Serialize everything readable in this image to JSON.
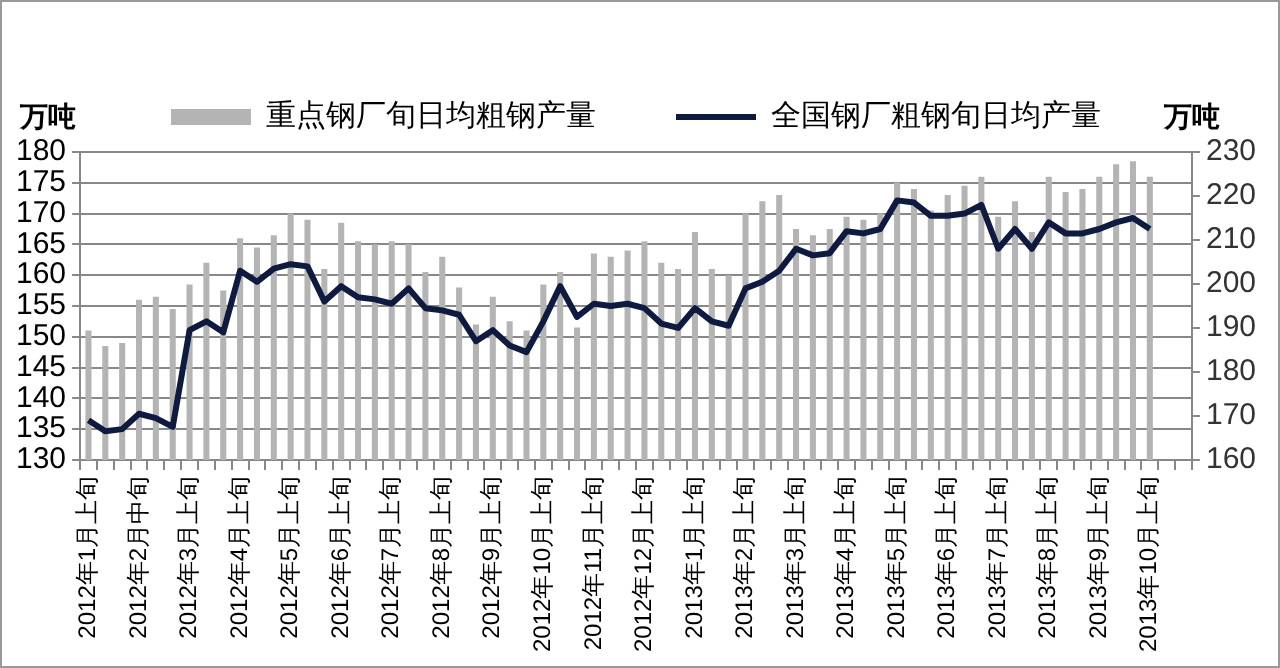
{
  "chart_data": {
    "type": "bar",
    "ylabel": "万吨",
    "y2label": "万吨",
    "categories": [
      "2012年1月上旬",
      null,
      null,
      "2012年2月中旬",
      null,
      null,
      "2012年3月上旬",
      null,
      null,
      "2012年4月上旬",
      null,
      null,
      "2012年5月上旬",
      null,
      null,
      "2012年6月上旬",
      null,
      null,
      "2012年7月上旬",
      null,
      null,
      "2012年8月上旬",
      null,
      null,
      "2012年9月上旬",
      null,
      null,
      "2012年10月上旬",
      null,
      null,
      "2012年11月上旬",
      null,
      null,
      "2012年12月上旬",
      null,
      null,
      "2013年1月上旬",
      null,
      null,
      "2013年2月上旬",
      null,
      null,
      "2013年3月上旬",
      null,
      null,
      "2013年4月上旬",
      null,
      null,
      "2013年5月上旬",
      null,
      null,
      "2013年6月上旬",
      null,
      null,
      "2013年7月上旬",
      null,
      null,
      "2013年8月上旬",
      null,
      null,
      "2013年9月上旬",
      null,
      null,
      "2013年10月上旬",
      null,
      null
    ],
    "series": [
      {
        "name": "重点钢厂旬日均粗钢产量",
        "color": "#b4b4b4",
        "values": [
          151,
          148.5,
          149,
          156,
          156.5,
          154.5,
          158.5,
          162,
          157.5,
          166,
          164.5,
          166.5,
          170,
          169,
          161,
          168.5,
          165.5,
          165,
          165.5,
          165,
          160.5,
          163,
          158,
          152,
          156.5,
          152.5,
          151,
          158.5,
          160.5,
          151.5,
          163.5,
          163,
          164,
          165.5,
          162,
          161,
          167,
          161,
          160,
          170,
          172,
          173,
          167.5,
          166.5,
          167.5,
          169.5,
          169,
          170,
          175,
          174,
          170.5,
          173,
          174.5,
          176,
          169.5,
          172,
          167,
          176,
          173.5,
          174,
          176,
          178,
          178.5,
          176,
          null,
          null
        ]
      },
      {
        "name": "全国钢厂粗钢旬日均产量",
        "type": "line",
        "axis": "y2",
        "color": "#0e1a40",
        "values": [
          169,
          166.5,
          167,
          170.5,
          169.5,
          167.5,
          189.5,
          191.5,
          189,
          203,
          200.5,
          203.5,
          204.5,
          204,
          196,
          199.5,
          197,
          196.5,
          195.5,
          199,
          194.5,
          194,
          193,
          187,
          189.5,
          186,
          184.5,
          191.5,
          199.5,
          192.5,
          195.5,
          195,
          195.5,
          194.5,
          191,
          190,
          194.5,
          191.5,
          190.5,
          199,
          200.5,
          203,
          208,
          206.5,
          207,
          212,
          211.5,
          212.5,
          219,
          218.5,
          215.5,
          215.5,
          216,
          218,
          208,
          212.5,
          208,
          214,
          211.5,
          211.5,
          212.5,
          214,
          215,
          212.5,
          null,
          null
        ]
      }
    ],
    "ylim": [
      130,
      180
    ],
    "yticks": [
      130,
      135,
      140,
      145,
      150,
      155,
      160,
      165,
      170,
      175,
      180
    ],
    "y2lim": [
      160,
      230
    ],
    "y2ticks": [
      160,
      170,
      180,
      190,
      200,
      210,
      220,
      230
    ],
    "grid": "y",
    "legend": "top"
  }
}
